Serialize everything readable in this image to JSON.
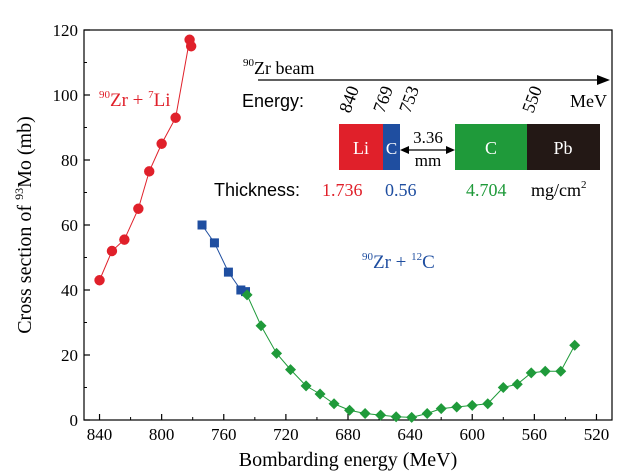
{
  "chart_data": {
    "type": "scatter",
    "title": "",
    "xlabel": "Bombarding energy (MeV)",
    "ylabel": "Cross section of 93Mo (mb)",
    "ylabel_parts": {
      "pre": "Cross section of ",
      "sup": "93",
      "post": "Mo (mb)"
    },
    "xlim": [
      850,
      510
    ],
    "ylim": [
      0,
      120
    ],
    "x_reversed": true,
    "x_ticks": [
      "840",
      "800",
      "760",
      "720",
      "680",
      "640",
      "600",
      "560",
      "520"
    ],
    "y_ticks": [
      "0",
      "20",
      "40",
      "60",
      "80",
      "100",
      "120"
    ],
    "grid": false,
    "series": [
      {
        "label_parts": {
          "sup1": "90",
          "base1": "Zr + ",
          "sup2": "7",
          "base2": "Li"
        },
        "color": "#e0202a",
        "marker": "circle",
        "points": [
          [
            840,
            43
          ],
          [
            832,
            52
          ],
          [
            824,
            55.5
          ],
          [
            815,
            65
          ],
          [
            808,
            76.5
          ],
          [
            800,
            85
          ],
          [
            791,
            93
          ],
          [
            782,
            117
          ],
          [
            781,
            115
          ]
        ]
      },
      {
        "label_parts": {
          "sup1": "90",
          "base1": "Zr + ",
          "sup2": "12",
          "base2": "C"
        },
        "color": "#1f4ea0",
        "marker": "square",
        "points": [
          [
            774,
            60
          ],
          [
            766,
            54.5
          ],
          [
            757,
            45.5
          ],
          [
            749,
            40
          ],
          [
            746,
            39.5
          ]
        ]
      },
      {
        "label_parts": {
          "sup1": "90",
          "base1": "Zr + ",
          "sup2": "12",
          "base2": "C"
        },
        "color": "#1f9a3a",
        "marker": "diamond",
        "points": [
          [
            745,
            38.5
          ],
          [
            736,
            29
          ],
          [
            726,
            20.5
          ],
          [
            717,
            15.5
          ],
          [
            707,
            10.5
          ],
          [
            698,
            8
          ],
          [
            689,
            5
          ],
          [
            679,
            3
          ],
          [
            669,
            2
          ],
          [
            659,
            1.5
          ],
          [
            649,
            1
          ],
          [
            639,
            0.8
          ],
          [
            629,
            2
          ],
          [
            620,
            3.5
          ],
          [
            610,
            4
          ],
          [
            600,
            4.5
          ],
          [
            590,
            5
          ],
          [
            580,
            10
          ],
          [
            571,
            11
          ],
          [
            562,
            14.5
          ],
          [
            553,
            15
          ],
          [
            543,
            15
          ],
          [
            534,
            23
          ]
        ]
      }
    ],
    "inset": {
      "beam_sup": "90",
      "beam_label": "Zr beam",
      "energy_label": "Energy:",
      "energy_values": [
        "840",
        "769",
        "753",
        "550"
      ],
      "energy_unit": "MeV",
      "layers": [
        {
          "name": "Li",
          "color": "#e0202a",
          "text_color": "#ffffff"
        },
        {
          "name": "C",
          "color": "#1f4ea0",
          "text_color": "#ffffff"
        },
        {
          "name": "C",
          "color": "#1f9a3a",
          "text_color": "#ffffff"
        },
        {
          "name": "Pb",
          "color": "#231815",
          "text_color": "#ffffff"
        }
      ],
      "gap_value": "3.36",
      "gap_unit": "mm",
      "thickness_label": "Thickness:",
      "thickness_values": [
        {
          "value": "1.736",
          "color": "#e0202a"
        },
        {
          "value": "0.56",
          "color": "#1f4ea0"
        },
        {
          "value": "4.704",
          "color": "#1f9a3a"
        }
      ],
      "thickness_unit": "mg/cm",
      "thickness_unit_sup": "2"
    }
  }
}
